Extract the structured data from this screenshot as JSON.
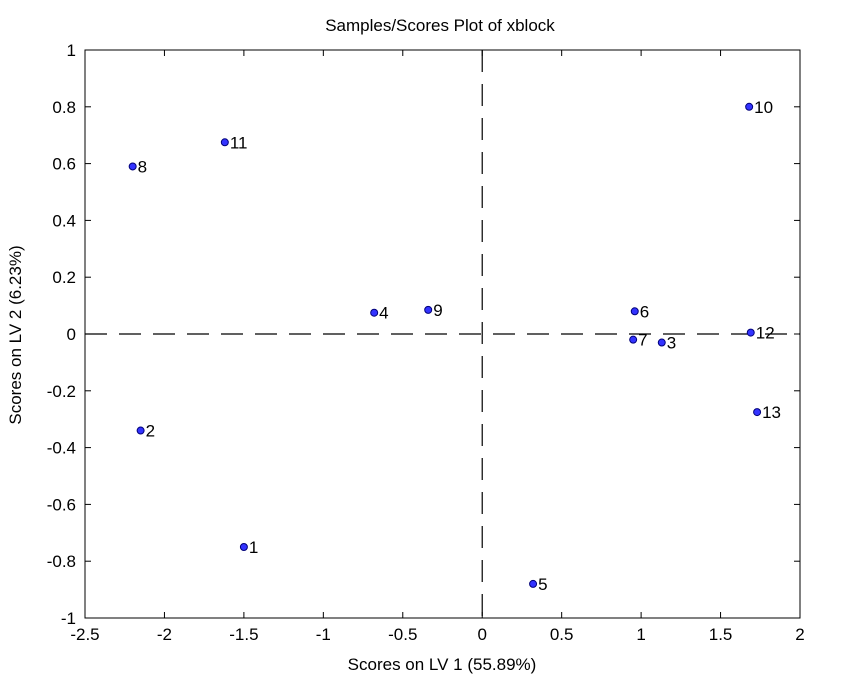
{
  "chart_data": {
    "type": "scatter",
    "title": "Samples/Scores Plot of xblock",
    "xlabel": "Scores on LV 1 (55.89%)",
    "ylabel": "Scores on LV 2 (6.23%)",
    "xlim": [
      -2.5,
      2
    ],
    "ylim": [
      -1,
      1
    ],
    "x_ticks": [
      -2.5,
      -2,
      -1.5,
      -1,
      -0.5,
      0,
      0.5,
      1,
      1.5,
      2
    ],
    "x_tick_labels": [
      "-2.5",
      "-2",
      "-1.5",
      "-1",
      "-0.5",
      "0",
      "0.5",
      "1",
      "1.5",
      "2"
    ],
    "y_ticks": [
      -1,
      -0.8,
      -0.6,
      -0.4,
      -0.2,
      0,
      0.2,
      0.4,
      0.6,
      0.8,
      1
    ],
    "y_tick_labels": [
      "-1",
      "-0.8",
      "-0.6",
      "-0.4",
      "-0.2",
      "0",
      "0.2",
      "0.4",
      "0.6",
      "0.8",
      "1"
    ],
    "grid": false,
    "reference_lines": {
      "x": 0,
      "y": 0,
      "style": "dashed"
    },
    "marker_color": "#3333ff",
    "points": [
      {
        "label": "1",
        "x": -1.5,
        "y": -0.75
      },
      {
        "label": "2",
        "x": -2.15,
        "y": -0.34
      },
      {
        "label": "3",
        "x": 1.13,
        "y": -0.03
      },
      {
        "label": "4",
        "x": -0.68,
        "y": 0.075
      },
      {
        "label": "5",
        "x": 0.32,
        "y": -0.88
      },
      {
        "label": "6",
        "x": 0.96,
        "y": 0.08
      },
      {
        "label": "7",
        "x": 0.95,
        "y": -0.02
      },
      {
        "label": "8",
        "x": -2.2,
        "y": 0.59
      },
      {
        "label": "9",
        "x": -0.34,
        "y": 0.085
      },
      {
        "label": "10",
        "x": 1.68,
        "y": 0.8
      },
      {
        "label": "11",
        "x": -1.62,
        "y": 0.675
      },
      {
        "label": "12",
        "x": 1.69,
        "y": 0.005
      },
      {
        "label": "13",
        "x": 1.73,
        "y": -0.275
      }
    ]
  }
}
